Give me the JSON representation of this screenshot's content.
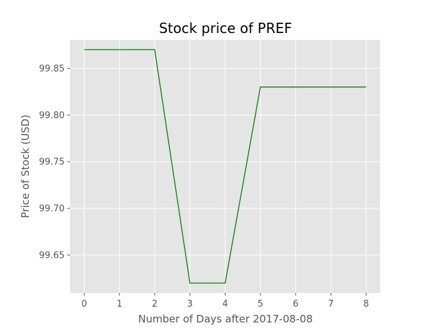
{
  "chart_data": {
    "type": "line",
    "title": "Stock price of PREF",
    "xlabel": "Number of Days after 2017-08-08",
    "ylabel": "Price of Stock (USD)",
    "x": [
      0,
      1,
      2,
      3,
      4,
      5,
      6,
      7,
      8
    ],
    "series": [
      {
        "values": [
          99.87,
          99.87,
          99.87,
          99.62,
          99.62,
          99.83,
          99.83,
          99.83,
          99.83
        ]
      }
    ],
    "xlim": [
      -0.4,
      8.4
    ],
    "ylim": [
      99.6095,
      99.8805
    ],
    "xticks": [
      0,
      1,
      2,
      3,
      4,
      5,
      6,
      7,
      8
    ],
    "yticks": [
      99.65,
      99.7,
      99.75,
      99.8,
      99.85
    ],
    "ytick_labels": [
      "99.65",
      "99.70",
      "99.75",
      "99.80",
      "99.85"
    ],
    "grid": true,
    "colors": {
      "background": "#e5e5e5",
      "line": "#008000",
      "grid": "#ffffff"
    }
  }
}
